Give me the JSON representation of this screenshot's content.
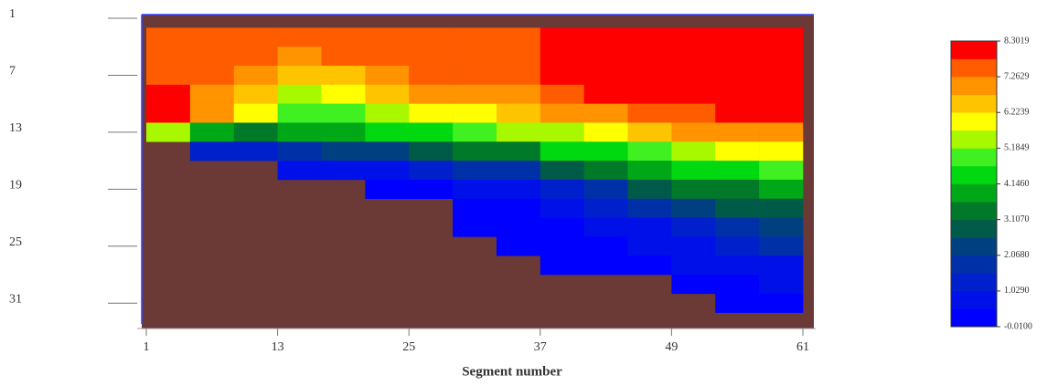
{
  "chart_data": {
    "type": "heatmap",
    "xlabel": "Segment number",
    "xlim": [
      1,
      61
    ],
    "xticks": [
      1,
      13,
      25,
      37,
      49,
      61
    ],
    "ylim": [
      1,
      33
    ],
    "yticks": [
      1,
      7,
      13,
      19,
      25,
      31
    ],
    "y_inverted": true,
    "x": [
      3,
      7,
      11,
      15,
      19,
      23,
      27,
      31,
      35,
      39,
      43,
      47,
      51,
      55,
      59
    ],
    "y": [
      3,
      5,
      7,
      9,
      11,
      13,
      15,
      17,
      19,
      21,
      23,
      25,
      27,
      29,
      31
    ],
    "z": [
      [
        7.5,
        7.3,
        7.3,
        7.3,
        7.4,
        7.5,
        7.6,
        7.6,
        7.7,
        8.1,
        8.2,
        8.2,
        8.3,
        8.3,
        8.3
      ],
      [
        7.3,
        7.4,
        7.3,
        7.2,
        7.3,
        7.4,
        7.5,
        7.6,
        7.6,
        8.0,
        8.2,
        8.2,
        8.3,
        8.3,
        8.3
      ],
      [
        7.6,
        7.6,
        7.0,
        6.3,
        6.6,
        7.0,
        7.3,
        7.4,
        7.4,
        7.8,
        8.1,
        8.2,
        8.2,
        8.2,
        8.2
      ],
      [
        7.8,
        7.2,
        6.6,
        5.5,
        6.0,
        6.5,
        6.8,
        7.0,
        7.1,
        7.4,
        7.8,
        8.0,
        8.1,
        8.1,
        8.1
      ],
      [
        7.9,
        6.8,
        5.8,
        4.8,
        5.0,
        5.3,
        5.8,
        6.2,
        6.4,
        6.8,
        7.2,
        7.5,
        7.7,
        7.8,
        7.8
      ],
      [
        5.5,
        4.0,
        3.5,
        4.0,
        4.0,
        4.3,
        4.6,
        5.0,
        5.2,
        5.6,
        6.0,
        6.4,
        6.8,
        7.0,
        7.1
      ],
      [
        null,
        1.5,
        1.2,
        1.8,
        2.2,
        2.5,
        3.0,
        3.3,
        3.6,
        4.2,
        4.6,
        5.0,
        5.4,
        5.8,
        6.0
      ],
      [
        null,
        null,
        null,
        0.8,
        0.8,
        1.0,
        1.3,
        1.6,
        2.0,
        2.6,
        3.2,
        3.8,
        4.3,
        4.6,
        5.0
      ],
      [
        null,
        null,
        null,
        null,
        null,
        0.5,
        0.5,
        0.6,
        0.8,
        1.4,
        2.0,
        2.6,
        3.2,
        3.6,
        3.9
      ],
      [
        null,
        null,
        null,
        null,
        null,
        null,
        null,
        0.4,
        0.4,
        0.6,
        1.2,
        1.6,
        2.2,
        2.6,
        3.0
      ],
      [
        null,
        null,
        null,
        null,
        null,
        null,
        null,
        0.3,
        0.3,
        0.4,
        0.6,
        1.0,
        1.5,
        1.8,
        2.2
      ],
      [
        null,
        null,
        null,
        null,
        null,
        null,
        null,
        null,
        0.3,
        0.3,
        0.4,
        0.6,
        1.0,
        1.2,
        1.6
      ],
      [
        null,
        null,
        null,
        null,
        null,
        null,
        null,
        null,
        null,
        0.3,
        0.3,
        0.4,
        0.6,
        0.8,
        1.0
      ],
      [
        null,
        null,
        null,
        null,
        null,
        null,
        null,
        null,
        null,
        null,
        null,
        null,
        0.4,
        0.5,
        0.6
      ],
      [
        null,
        null,
        null,
        null,
        null,
        null,
        null,
        null,
        null,
        null,
        null,
        null,
        null,
        0.3,
        0.3
      ]
    ],
    "bottom_color": "#6b3a36",
    "colormap": [
      "#0000ff",
      "#0010e8",
      "#0020cc",
      "#0030a8",
      "#004080",
      "#005a48",
      "#007a28",
      "#00a818",
      "#00d810",
      "#40f020",
      "#a8f800",
      "#ffff00",
      "#ffc400",
      "#ff9400",
      "#ff5c00",
      "#ff0000"
    ],
    "colorbar_ticks": [
      {
        "value": -0.01,
        "label": "-0.0100"
      },
      {
        "value": 1.029,
        "label": "1.0290"
      },
      {
        "value": 2.068,
        "label": "2.0680"
      },
      {
        "value": 3.107,
        "label": "3.1070"
      },
      {
        "value": 4.146,
        "label": "4.1460"
      },
      5.1849,
      6.2239,
      7.2629,
      8.3019
    ]
  }
}
